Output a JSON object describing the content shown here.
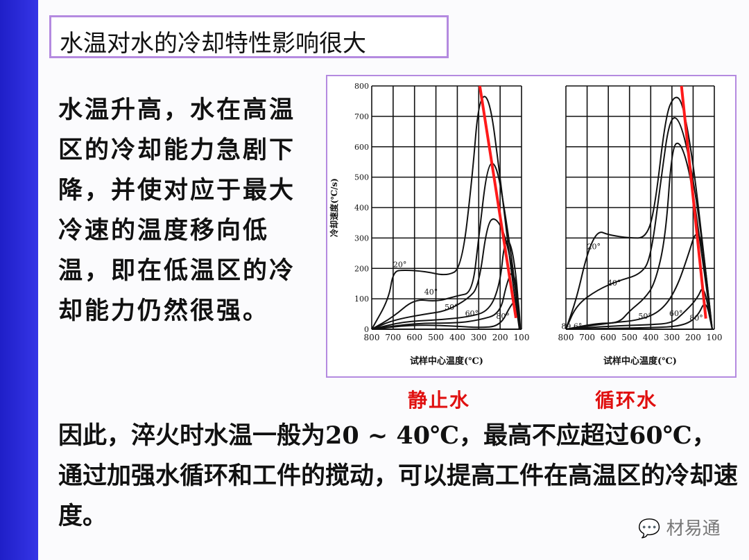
{
  "title": "水温对水的冷却特性影响很大",
  "paragraph": "水温升高，水在高温区的冷却能力急剧下降，并使对应于最大冷速的温度移向低温，即在低温区的冷却能力仍然很强。",
  "captions": {
    "left": "静止水",
    "right": "循环水"
  },
  "bottom_text": "因此，淬火时水温一般为20 ~ 40℃，最高不应超过60℃，通过加强水循环和工件的搅动，可以提高工件在高温区的冷却速度。",
  "watermark": "材易通",
  "colors": {
    "accent_strip": "#2a2ad8",
    "border": "#b48ae0",
    "trend_line": "#ff1a1a",
    "caption": "#e01010"
  },
  "chart_data": [
    {
      "type": "line",
      "caption": "静止水",
      "xlabel": "试样中心温度(℃)",
      "ylabel": "冷却速度(℃/s)",
      "xlim": [
        800,
        100
      ],
      "ylim": [
        0,
        800
      ],
      "xticks": [
        "800",
        "700",
        "600",
        "500",
        "400",
        "300",
        "200",
        "100"
      ],
      "yticks": [
        "0",
        "100",
        "200",
        "300",
        "400",
        "500",
        "600",
        "700",
        "800"
      ],
      "grid": true,
      "series": [
        {
          "name": "20°",
          "points": [
            [
              800,
              0
            ],
            [
              720,
              100
            ],
            [
              700,
              190
            ],
            [
              650,
              195
            ],
            [
              550,
              190
            ],
            [
              450,
              175
            ],
            [
              380,
              200
            ],
            [
              330,
              500
            ],
            [
              300,
              760
            ],
            [
              250,
              770
            ],
            [
              200,
              500
            ],
            [
              150,
              200
            ],
            [
              110,
              0
            ]
          ]
        },
        {
          "name": "40°",
          "points": [
            [
              800,
              0
            ],
            [
              700,
              40
            ],
            [
              600,
              100
            ],
            [
              500,
              90
            ],
            [
              400,
              110
            ],
            [
              330,
              120
            ],
            [
              300,
              300
            ],
            [
              260,
              540
            ],
            [
              220,
              550
            ],
            [
              180,
              400
            ],
            [
              130,
              150
            ],
            [
              110,
              0
            ]
          ]
        },
        {
          "name": "50°",
          "points": [
            [
              800,
              0
            ],
            [
              700,
              30
            ],
            [
              550,
              50
            ],
            [
              450,
              60
            ],
            [
              350,
              100
            ],
            [
              300,
              140
            ],
            [
              260,
              350
            ],
            [
              220,
              370
            ],
            [
              170,
              300
            ],
            [
              120,
              100
            ],
            [
              110,
              0
            ]
          ]
        },
        {
          "name": "60°",
          "points": [
            [
              800,
              0
            ],
            [
              650,
              25
            ],
            [
              500,
              30
            ],
            [
              350,
              40
            ],
            [
              250,
              60
            ],
            [
              200,
              150
            ],
            [
              180,
              290
            ],
            [
              150,
              290
            ],
            [
              120,
              150
            ],
            [
              110,
              0
            ]
          ]
        },
        {
          "name": "80°",
          "points": [
            [
              800,
              0
            ],
            [
              600,
              20
            ],
            [
              400,
              20
            ],
            [
              300,
              30
            ],
            [
              200,
              50
            ],
            [
              170,
              150
            ],
            [
              140,
              200
            ],
            [
              115,
              100
            ],
            [
              105,
              0
            ]
          ]
        },
        {
          "name": "89.6°",
          "points": [
            [
              800,
              0
            ],
            [
              600,
              15
            ],
            [
              400,
              10
            ],
            [
              300,
              5
            ],
            [
              200,
              10
            ],
            [
              150,
              80
            ],
            [
              120,
              100
            ],
            [
              110,
              0
            ]
          ]
        }
      ],
      "trend_line": [
        [
          295,
          800
        ],
        [
          126,
          37
        ]
      ]
    },
    {
      "type": "line",
      "caption": "循环水",
      "xlabel": "试样中心温度(℃)",
      "xlim": [
        800,
        100
      ],
      "ylim": [
        0,
        800
      ],
      "xticks": [
        "800",
        "700",
        "600",
        "500",
        "400",
        "300",
        "200",
        "100"
      ],
      "grid": true,
      "series": [
        {
          "name": "20°",
          "points": [
            [
              800,
              0
            ],
            [
              750,
              100
            ],
            [
              700,
              250
            ],
            [
              650,
              325
            ],
            [
              600,
              310
            ],
            [
              500,
              300
            ],
            [
              420,
              300
            ],
            [
              380,
              400
            ],
            [
              330,
              700
            ],
            [
              290,
              770
            ],
            [
              250,
              750
            ],
            [
              200,
              550
            ],
            [
              150,
              250
            ],
            [
              110,
              0
            ]
          ]
        },
        {
          "name": "40°",
          "points": [
            [
              800,
              0
            ],
            [
              750,
              80
            ],
            [
              650,
              130
            ],
            [
              550,
              160
            ],
            [
              450,
              180
            ],
            [
              400,
              230
            ],
            [
              350,
              500
            ],
            [
              310,
              700
            ],
            [
              260,
              690
            ],
            [
              200,
              500
            ],
            [
              150,
              250
            ],
            [
              110,
              0
            ]
          ]
        },
        {
          "name": "50°",
          "points": [
            [
              800,
              0
            ],
            [
              650,
              20
            ],
            [
              550,
              20
            ],
            [
              500,
              60
            ],
            [
              430,
              100
            ],
            [
              380,
              150
            ],
            [
              330,
              300
            ],
            [
              300,
              600
            ],
            [
              260,
              620
            ],
            [
              210,
              500
            ],
            [
              160,
              250
            ],
            [
              110,
              0
            ]
          ]
        },
        {
          "name": "60°",
          "points": [
            [
              800,
              0
            ],
            [
              600,
              20
            ],
            [
              450,
              30
            ],
            [
              350,
              60
            ],
            [
              280,
              130
            ],
            [
              220,
              250
            ],
            [
              190,
              320
            ],
            [
              160,
              300
            ],
            [
              130,
              100
            ],
            [
              110,
              0
            ]
          ]
        },
        {
          "name": "80°",
          "points": [
            [
              800,
              0
            ],
            [
              600,
              10
            ],
            [
              400,
              15
            ],
            [
              300,
              20
            ],
            [
              250,
              50
            ],
            [
              180,
              100
            ],
            [
              150,
              150
            ],
            [
              110,
              0
            ]
          ]
        },
        {
          "name": "89.6°",
          "points": [
            [
              800,
              0
            ],
            [
              400,
              5
            ],
            [
              250,
              10
            ],
            [
              180,
              40
            ],
            [
              140,
              100
            ],
            [
              110,
              0
            ]
          ]
        }
      ],
      "trend_line": [
        [
          255,
          800
        ],
        [
          140,
          35
        ]
      ]
    }
  ]
}
